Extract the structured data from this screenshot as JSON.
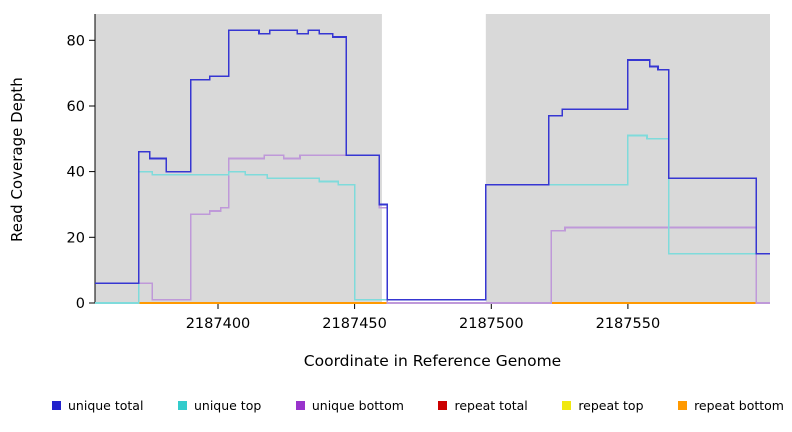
{
  "chart_data": {
    "type": "line",
    "subtype": "step-coverage-plot",
    "title": "",
    "xlabel": "Coordinate in Reference Genome",
    "ylabel": "Read Coverage Depth",
    "xlim": [
      2187355,
      2187602
    ],
    "ylim": [
      0,
      88
    ],
    "x_ticks": [
      2187400,
      2187450,
      2187500,
      2187550
    ],
    "y_ticks": [
      0,
      20,
      40,
      60,
      80
    ],
    "grid": false,
    "legend_position": "bottom",
    "band_color": "#d9d9d9",
    "bands": [
      {
        "from": 2187355,
        "to": 2187460
      },
      {
        "from": 2187498,
        "to": 2187602
      }
    ],
    "draw_order": [
      3,
      4,
      5,
      2,
      1,
      0
    ],
    "series": [
      {
        "name": "unique total",
        "color": "#3636d2",
        "legend_color": "#2222cc",
        "points": [
          [
            2187355,
            6
          ],
          [
            2187371,
            46
          ],
          [
            2187375,
            44
          ],
          [
            2187381,
            40
          ],
          [
            2187390,
            68
          ],
          [
            2187397,
            69
          ],
          [
            2187404,
            83
          ],
          [
            2187415,
            82
          ],
          [
            2187419,
            83
          ],
          [
            2187429,
            82
          ],
          [
            2187433,
            83
          ],
          [
            2187437,
            82
          ],
          [
            2187442,
            81
          ],
          [
            2187447,
            45
          ],
          [
            2187459,
            30
          ],
          [
            2187462,
            1
          ],
          [
            2187498,
            36
          ],
          [
            2187521,
            57
          ],
          [
            2187526,
            59
          ],
          [
            2187550,
            74
          ],
          [
            2187558,
            72
          ],
          [
            2187561,
            71
          ],
          [
            2187565,
            38
          ],
          [
            2187597,
            15
          ]
        ]
      },
      {
        "name": "unique top",
        "color": "#7fdbdb",
        "legend_color": "#33cccc",
        "points": [
          [
            2187355,
            0
          ],
          [
            2187371,
            40
          ],
          [
            2187376,
            39
          ],
          [
            2187404,
            40
          ],
          [
            2187410,
            39
          ],
          [
            2187418,
            38
          ],
          [
            2187437,
            37
          ],
          [
            2187444,
            36
          ],
          [
            2187450,
            1
          ],
          [
            2187498,
            36
          ],
          [
            2187550,
            51
          ],
          [
            2187557,
            50
          ],
          [
            2187565,
            15
          ]
        ]
      },
      {
        "name": "unique bottom",
        "color": "#bf99d9",
        "legend_color": "#9933cc",
        "points": [
          [
            2187355,
            0
          ],
          [
            2187371,
            6
          ],
          [
            2187376,
            1
          ],
          [
            2187390,
            27
          ],
          [
            2187397,
            28
          ],
          [
            2187401,
            29
          ],
          [
            2187404,
            44
          ],
          [
            2187417,
            45
          ],
          [
            2187424,
            44
          ],
          [
            2187430,
            45
          ],
          [
            2187459,
            29
          ],
          [
            2187462,
            0
          ],
          [
            2187522,
            22
          ],
          [
            2187527,
            23
          ],
          [
            2187597,
            0
          ]
        ]
      },
      {
        "name": "repeat total",
        "color": "#cc0000",
        "legend_color": "#cc0000",
        "points": [
          [
            2187355,
            0
          ]
        ]
      },
      {
        "name": "repeat top",
        "color": "#e8e800",
        "legend_color": "#f0e810",
        "points": [
          [
            2187355,
            0
          ]
        ]
      },
      {
        "name": "repeat bottom",
        "color": "#ff9900",
        "legend_color": "#ff9900",
        "points": [
          [
            2187355,
            0
          ]
        ]
      }
    ]
  }
}
